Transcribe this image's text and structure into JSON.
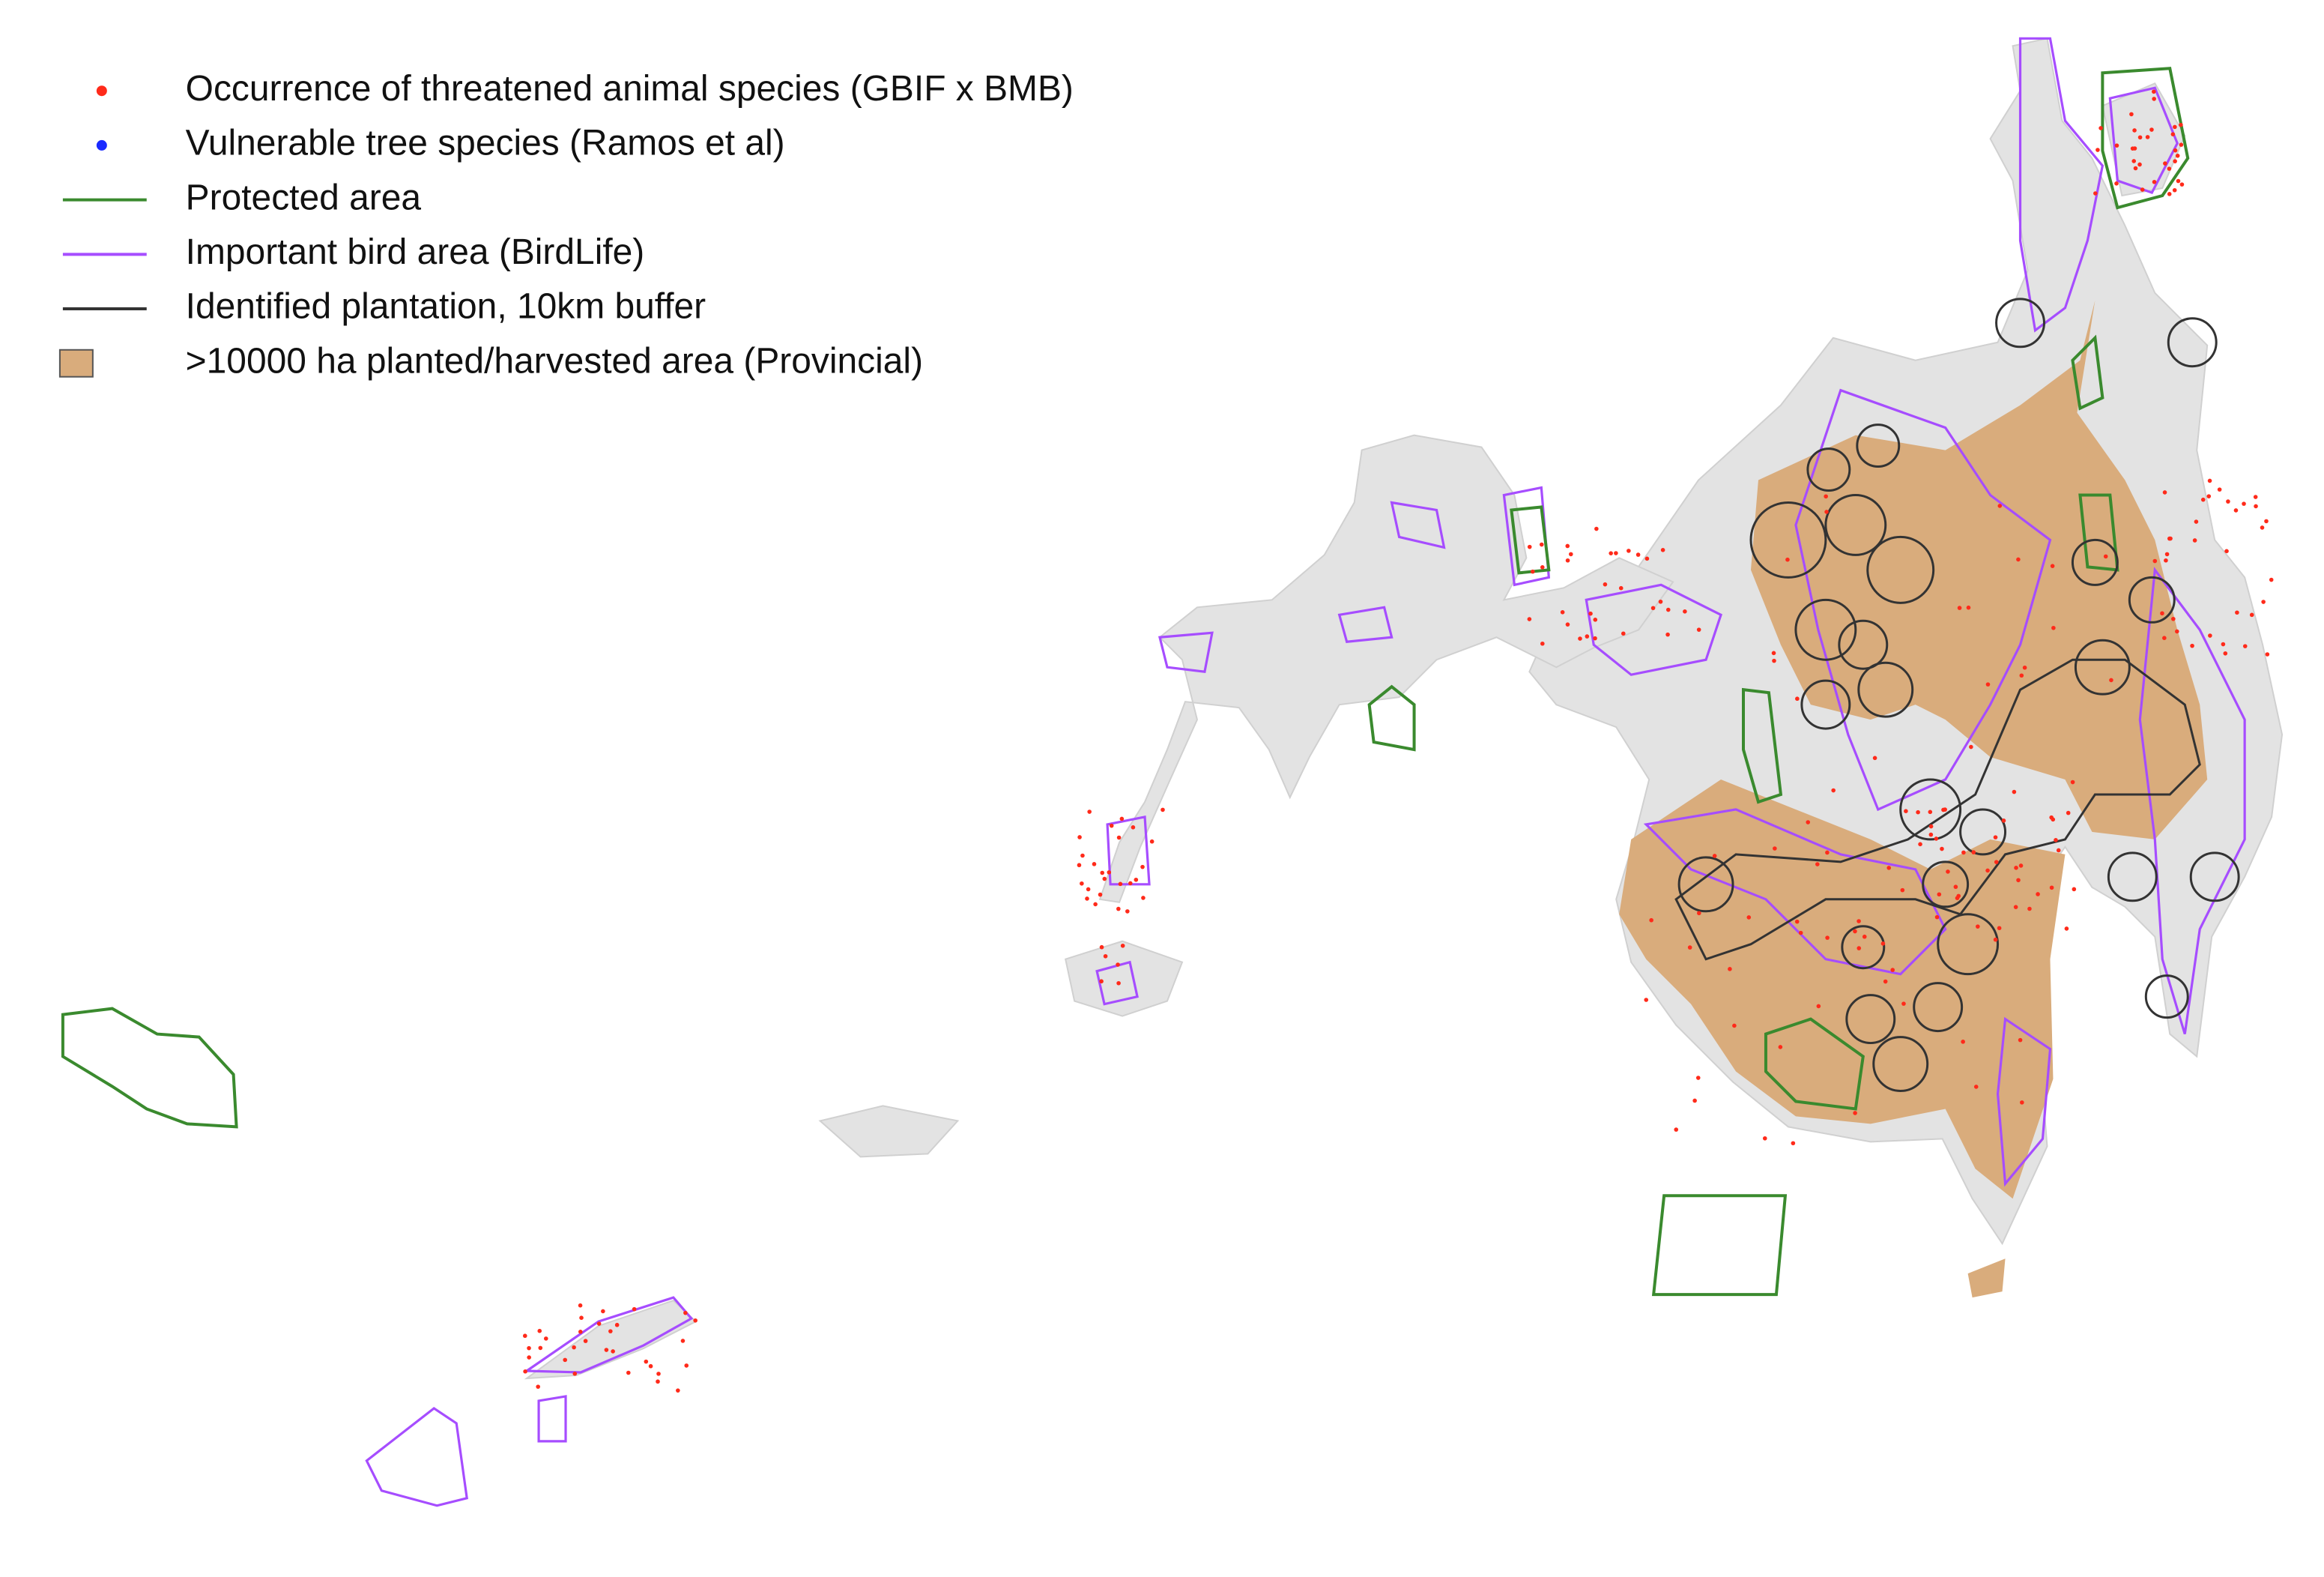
{
  "legend": {
    "items": [
      {
        "label": "Occurrence of threatened animal species (GBIF x BMB)",
        "color": "#ff2a1a",
        "symbol": "dot"
      },
      {
        "label": "Vulnerable tree species (Ramos et al)",
        "color": "#1a2aff",
        "symbol": "dot"
      },
      {
        "label": "Protected area",
        "color": "#3a8a2e",
        "symbol": "line"
      },
      {
        "label": "Important bird area (BirdLife)",
        "color": "#a64dff",
        "symbol": "line"
      },
      {
        "label": "Identified plantation, 10km buffer",
        "color": "#333333",
        "symbol": "line"
      },
      {
        "label": ">10000 ha planted/harvested area (Provincial)",
        "color": "#d9ac7c",
        "symbol": "box"
      }
    ]
  }
}
